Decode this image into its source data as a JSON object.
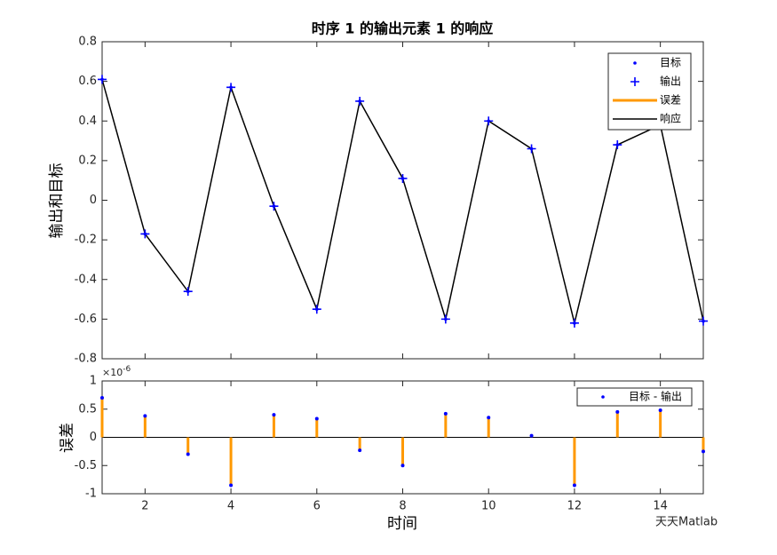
{
  "chart_data": [
    {
      "type": "line",
      "title": "时序 1 的输出元素 1 的响应",
      "y_label": "输出和目标",
      "x": [
        1,
        2,
        3,
        4,
        5,
        6,
        7,
        8,
        9,
        10,
        11,
        12,
        13,
        14,
        15
      ],
      "series": [
        {
          "name": "目标",
          "color": "#0000ff",
          "marker": "dot",
          "values": [
            0.61,
            -0.17,
            -0.46,
            0.57,
            -0.03,
            -0.55,
            0.5,
            0.11,
            -0.6,
            0.4,
            0.26,
            -0.62,
            0.28,
            0.38,
            -0.61
          ]
        },
        {
          "name": "输出",
          "color": "#0000ff",
          "marker": "plus",
          "values": [
            0.61,
            -0.17,
            -0.46,
            0.57,
            -0.03,
            -0.55,
            0.5,
            0.11,
            -0.6,
            0.4,
            0.26,
            -0.62,
            0.28,
            0.38,
            -0.61
          ]
        },
        {
          "name": "误差",
          "color": "#ff9900",
          "marker": "none"
        },
        {
          "name": "响应",
          "color": "#000000",
          "marker": "line",
          "values": [
            0.61,
            -0.17,
            -0.46,
            0.57,
            -0.03,
            -0.55,
            0.5,
            0.11,
            -0.6,
            0.4,
            0.26,
            -0.62,
            0.28,
            0.38,
            -0.61
          ]
        }
      ],
      "xlim": [
        1,
        15
      ],
      "ylim": [
        -0.8,
        0.8
      ],
      "yticks": [
        -0.8,
        -0.6,
        -0.4,
        -0.2,
        0,
        0.2,
        0.4,
        0.6,
        0.8
      ],
      "xticks": [
        2,
        4,
        6,
        8,
        10,
        12,
        14
      ],
      "legend": "upper right"
    },
    {
      "type": "stem",
      "y_label": "误差",
      "x_label": "时间",
      "multiplier_base": "×10",
      "multiplier_exp": "-6",
      "x": [
        1,
        2,
        3,
        4,
        5,
        6,
        7,
        8,
        9,
        10,
        11,
        12,
        13,
        14,
        15
      ],
      "series": [
        {
          "name": "目标 - 输出",
          "color": "#0000ff",
          "stem_color": "#ff9900",
          "values": [
            0.7,
            0.38,
            -0.3,
            -0.85,
            0.4,
            0.33,
            -0.23,
            -0.5,
            0.42,
            0.35,
            0.03,
            -0.85,
            0.45,
            0.48,
            -0.25
          ]
        }
      ],
      "xlim": [
        1,
        15
      ],
      "ylim": [
        -1,
        1
      ],
      "yticks": [
        -1,
        -0.5,
        0,
        0.5,
        1
      ],
      "xticks": [
        2,
        4,
        6,
        8,
        10,
        12,
        14
      ],
      "legend": "upper right"
    }
  ],
  "watermark": "天天Matlab"
}
